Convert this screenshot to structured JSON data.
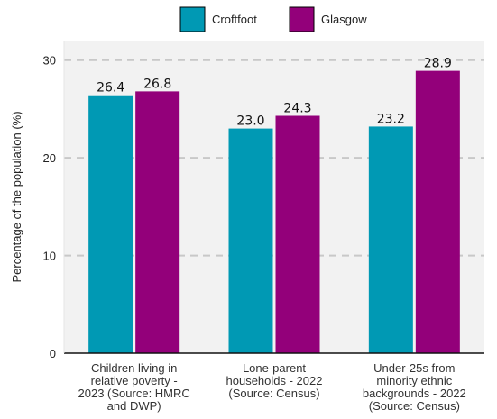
{
  "chart_data": {
    "type": "bar",
    "categories": [
      [
        "Children living in",
        "relative poverty -",
        "2023 (Source: HMRC",
        "and DWP)"
      ],
      [
        "Lone-parent",
        "households - 2022",
        "(Source: Census)"
      ],
      [
        "Under-25s from",
        "minority ethnic",
        "backgrounds - 2022",
        "(Source: Census)"
      ]
    ],
    "series": [
      {
        "name": "Croftfoot",
        "color": "#0099b4",
        "values": [
          26.4,
          23.0,
          23.2
        ],
        "labels": [
          "26.4",
          "23.0",
          "23.2"
        ]
      },
      {
        "name": "Glasgow",
        "color": "#93007a",
        "values": [
          26.8,
          24.3,
          28.9
        ],
        "labels": [
          "26.8",
          "24.3",
          "28.9"
        ]
      }
    ],
    "ylabel": "Percentage of the population (%)",
    "xlabel": "",
    "ylim": [
      0,
      32
    ],
    "yticks": [
      0,
      10,
      20,
      30
    ],
    "grid": true,
    "legend": "top-center",
    "background": "#f2f2f2"
  }
}
